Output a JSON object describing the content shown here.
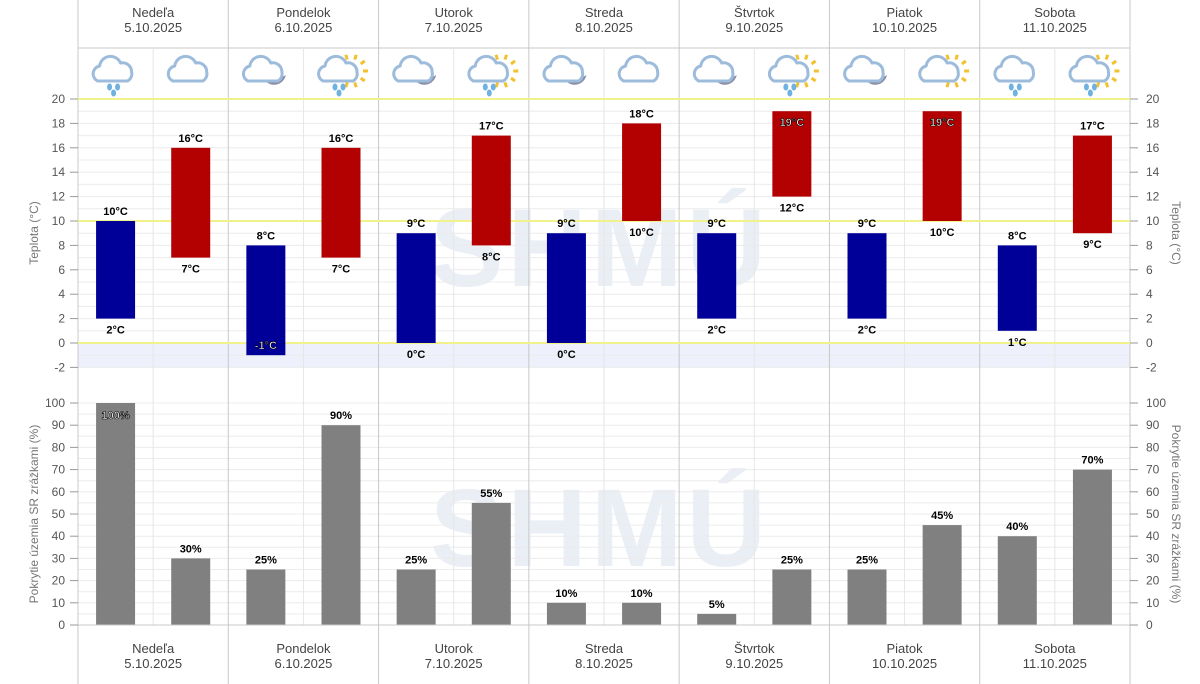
{
  "watermark": "SHMÚ",
  "days": [
    {
      "name": "Nedeľa",
      "date": "5.10.2025",
      "icons": [
        "rain-cloud-icon",
        "cloud-icon"
      ]
    },
    {
      "name": "Pondelok",
      "date": "6.10.2025",
      "icons": [
        "cloud-moon-icon",
        "sun-cloud-rain-icon"
      ]
    },
    {
      "name": "Utorok",
      "date": "7.10.2025",
      "icons": [
        "cloud-moon-icon",
        "sun-cloud-rain-icon"
      ]
    },
    {
      "name": "Streda",
      "date": "8.10.2025",
      "icons": [
        "cloud-moon-icon",
        "cloud-icon"
      ]
    },
    {
      "name": "Štvrtok",
      "date": "9.10.2025",
      "icons": [
        "cloud-moon-icon",
        "sun-cloud-rain-icon"
      ]
    },
    {
      "name": "Piatok",
      "date": "10.10.2025",
      "icons": [
        "cloud-moon-icon",
        "sun-cloud-icon"
      ]
    },
    {
      "name": "Sobota",
      "date": "11.10.2025",
      "icons": [
        "rain-cloud-icon",
        "sun-cloud-rain-icon"
      ]
    }
  ],
  "colors": {
    "night": "#000099",
    "day": "#b30000",
    "precip": "#808080",
    "ref_line": "#f2f28c",
    "below_zero": "#eef0fb"
  },
  "chart_data": [
    {
      "type": "bar",
      "title": "",
      "ylabel": "Teplota (°C)",
      "ylim": [
        -2,
        20
      ],
      "yticks": [
        -2,
        0,
        2,
        4,
        6,
        8,
        10,
        12,
        14,
        16,
        18,
        20
      ],
      "unit": "°C",
      "series": [
        {
          "name": "night",
          "low": [
            2,
            -1,
            0,
            0,
            2,
            2,
            1
          ],
          "high": [
            10,
            8,
            9,
            9,
            9,
            9,
            8
          ]
        },
        {
          "name": "day",
          "low": [
            7,
            7,
            8,
            10,
            12,
            10,
            9
          ],
          "high": [
            16,
            16,
            17,
            18,
            19,
            19,
            17
          ]
        }
      ]
    },
    {
      "type": "bar",
      "ylabel": "Pokrytie územia SR zrážkami (%)",
      "ylim": [
        0,
        100
      ],
      "yticks": [
        0,
        10,
        20,
        30,
        40,
        50,
        60,
        70,
        80,
        90,
        100
      ],
      "unit": "%",
      "series": [
        {
          "name": "night",
          "values": [
            100,
            25,
            25,
            10,
            5,
            25,
            40
          ]
        },
        {
          "name": "day",
          "values": [
            30,
            90,
            55,
            10,
            25,
            45,
            70
          ]
        }
      ]
    }
  ]
}
